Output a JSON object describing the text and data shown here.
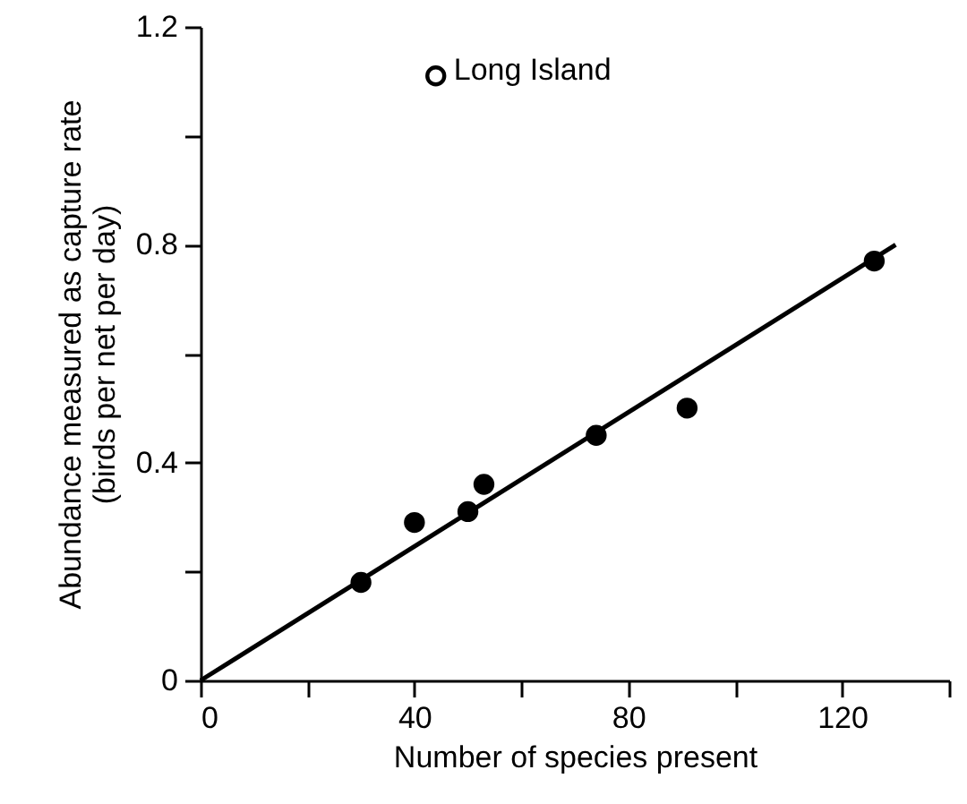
{
  "chart_data": {
    "type": "scatter",
    "xlabel": "Number of species present",
    "ylabel": "Abundance measured as capture rate\n(birds per net per day)",
    "xlim": [
      0,
      140
    ],
    "xticks": [
      0,
      {
        "value": 20,
        "label": null
      },
      40,
      {
        "value": 60,
        "label": null
      },
      80,
      {
        "value": 100,
        "label": null
      },
      120,
      {
        "value": 140,
        "label": null
      }
    ],
    "ylim": [
      0,
      1.2
    ],
    "yticks": [
      0,
      {
        "value": 0.2,
        "label": null
      },
      0.4,
      {
        "value": 0.6,
        "label": null
      },
      0.8,
      {
        "value": 1.0,
        "label": null
      },
      1.2
    ],
    "marker": "circle",
    "grid": false,
    "series": [
      {
        "color": "#000000",
        "x": [
          30,
          40,
          50,
          53,
          74,
          91,
          126
        ],
        "values": [
          0.18,
          0.29,
          0.31,
          0.36,
          0.45,
          0.5,
          0.77
        ]
      },
      {
        "name": "Long Island",
        "color": "#ffffff",
        "x": [
          44
        ],
        "values": [
          1.11
        ]
      },
      {
        "type": "line",
        "marker": "none",
        "color": "#000000",
        "x": [
          0,
          130
        ],
        "values": [
          0,
          0.8
        ]
      }
    ]
  }
}
